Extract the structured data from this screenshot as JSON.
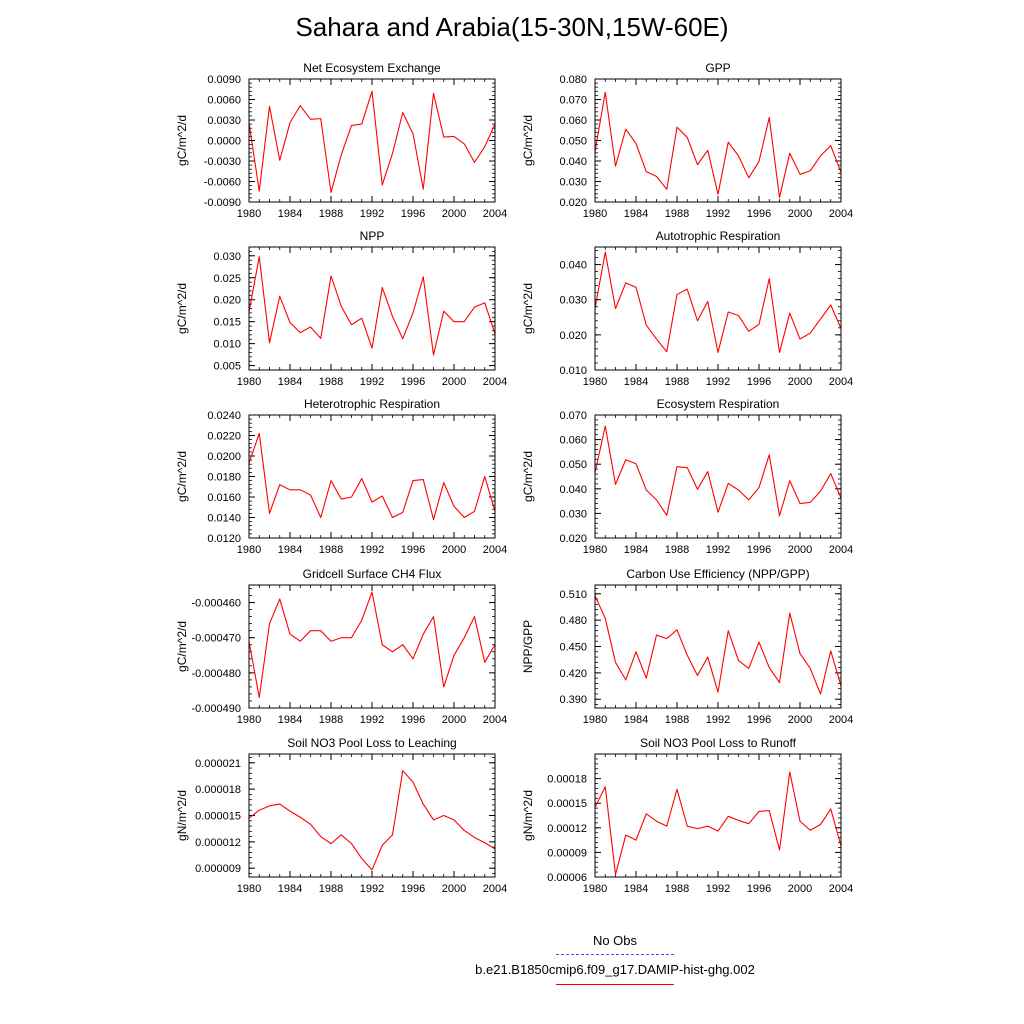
{
  "title": "Sahara and Arabia(15-30N,15W-60E)",
  "legend": {
    "items": [
      {
        "label": "No Obs",
        "color": "#4b4bff",
        "dash": true
      },
      {
        "label": "b.e21.B1850cmip6.f09_g17.DAMIP-hist-ghg.002",
        "color": "#ff0000",
        "dash": false
      }
    ]
  },
  "chart_data": [
    {
      "type": "line",
      "title": "Net Ecosystem Exchange",
      "ylabel": "gC/m^2/d",
      "x": [
        1980,
        1981,
        1982,
        1983,
        1984,
        1985,
        1986,
        1987,
        1988,
        1989,
        1990,
        1991,
        1992,
        1993,
        1994,
        1995,
        1996,
        1997,
        1998,
        1999,
        2000,
        2001,
        2002,
        2003,
        2004
      ],
      "xticks": [
        "1980",
        "1984",
        "1988",
        "1992",
        "1996",
        "2000",
        "2004"
      ],
      "xlim": [
        1980,
        2004
      ],
      "ylim": [
        -0.009,
        0.009
      ],
      "yticks": [
        "-0.0090",
        "-0.0060",
        "-0.0030",
        "0.0000",
        "0.0030",
        "0.0060",
        "0.0090"
      ],
      "series": [
        {
          "color": "#ff0000",
          "values": [
            0.0026,
            -0.0074,
            0.005,
            -0.0029,
            0.0026,
            0.0051,
            0.0031,
            0.0032,
            -0.0076,
            -0.0021,
            0.0022,
            0.0024,
            0.0072,
            -0.0065,
            -0.0019,
            0.0041,
            0.001,
            -0.0071,
            0.0069,
            0.0005,
            0.0006,
            -0.0005,
            -0.0032,
            -0.0009,
            0.0024
          ]
        }
      ]
    },
    {
      "type": "line",
      "title": "GPP",
      "ylabel": "gC/m^2/d",
      "x": [
        1980,
        1981,
        1982,
        1983,
        1984,
        1985,
        1986,
        1987,
        1988,
        1989,
        1990,
        1991,
        1992,
        1993,
        1994,
        1995,
        1996,
        1997,
        1998,
        1999,
        2000,
        2001,
        2002,
        2003,
        2004
      ],
      "xticks": [
        "1980",
        "1984",
        "1988",
        "1992",
        "1996",
        "2000",
        "2004"
      ],
      "xlim": [
        1980,
        2004
      ],
      "ylim": [
        0.02,
        0.08
      ],
      "yticks": [
        "0.020",
        "0.030",
        "0.040",
        "0.050",
        "0.060",
        "0.070",
        "0.080"
      ],
      "series": [
        {
          "color": "#ff0000",
          "values": [
            0.0445,
            0.0735,
            0.0375,
            0.0555,
            0.0485,
            0.0348,
            0.0325,
            0.0262,
            0.0565,
            0.0515,
            0.0382,
            0.0452,
            0.0238,
            0.0492,
            0.0425,
            0.0318,
            0.0398,
            0.0612,
            0.0222,
            0.0438,
            0.0335,
            0.0352,
            0.0425,
            0.0475,
            0.0345
          ]
        }
      ]
    },
    {
      "type": "line",
      "title": "NPP",
      "ylabel": "gC/m^2/d",
      "x": [
        1980,
        1981,
        1982,
        1983,
        1984,
        1985,
        1986,
        1987,
        1988,
        1989,
        1990,
        1991,
        1992,
        1993,
        1994,
        1995,
        1996,
        1997,
        1998,
        1999,
        2000,
        2001,
        2002,
        2003,
        2004
      ],
      "xticks": [
        "1980",
        "1984",
        "1988",
        "1992",
        "1996",
        "2000",
        "2004"
      ],
      "xlim": [
        1980,
        2004
      ],
      "ylim": [
        0.004,
        0.032
      ],
      "yticks": [
        "0.005",
        "0.010",
        "0.015",
        "0.020",
        "0.025",
        "0.030"
      ],
      "series": [
        {
          "color": "#ff0000",
          "values": [
            0.0172,
            0.0298,
            0.0102,
            0.0208,
            0.0148,
            0.0125,
            0.0138,
            0.0112,
            0.0254,
            0.0185,
            0.0143,
            0.0158,
            0.009,
            0.0228,
            0.0162,
            0.0111,
            0.017,
            0.0252,
            0.0074,
            0.0174,
            0.015,
            0.015,
            0.0183,
            0.0193,
            0.0122
          ]
        }
      ]
    },
    {
      "type": "line",
      "title": "Autotrophic Respiration",
      "ylabel": "gC/m^2/d",
      "x": [
        1980,
        1981,
        1982,
        1983,
        1984,
        1985,
        1986,
        1987,
        1988,
        1989,
        1990,
        1991,
        1992,
        1993,
        1994,
        1995,
        1996,
        1997,
        1998,
        1999,
        2000,
        2001,
        2002,
        2003,
        2004
      ],
      "xticks": [
        "1980",
        "1984",
        "1988",
        "1992",
        "1996",
        "2000",
        "2004"
      ],
      "xlim": [
        1980,
        2004
      ],
      "ylim": [
        0.01,
        0.045
      ],
      "yticks": [
        "0.010",
        "0.020",
        "0.030",
        "0.040"
      ],
      "series": [
        {
          "color": "#ff0000",
          "values": [
            0.0275,
            0.0435,
            0.0275,
            0.0348,
            0.0335,
            0.0228,
            0.0188,
            0.0152,
            0.0315,
            0.033,
            0.024,
            0.0295,
            0.015,
            0.0265,
            0.0255,
            0.021,
            0.023,
            0.036,
            0.015,
            0.0262,
            0.0188,
            0.0205,
            0.0245,
            0.0285,
            0.0218
          ]
        }
      ]
    },
    {
      "type": "line",
      "title": "Heterotrophic Respiration",
      "ylabel": "gC/m^2/d",
      "x": [
        1980,
        1981,
        1982,
        1983,
        1984,
        1985,
        1986,
        1987,
        1988,
        1989,
        1990,
        1991,
        1992,
        1993,
        1994,
        1995,
        1996,
        1997,
        1998,
        1999,
        2000,
        2001,
        2002,
        2003,
        2004
      ],
      "xticks": [
        "1980",
        "1984",
        "1988",
        "1992",
        "1996",
        "2000",
        "2004"
      ],
      "xlim": [
        1980,
        2004
      ],
      "ylim": [
        0.012,
        0.024
      ],
      "yticks": [
        "0.0120",
        "0.0140",
        "0.0160",
        "0.0180",
        "0.0200",
        "0.0220",
        "0.0240"
      ],
      "series": [
        {
          "color": "#ff0000",
          "values": [
            0.0193,
            0.0222,
            0.0144,
            0.0172,
            0.0167,
            0.0167,
            0.0162,
            0.014,
            0.0176,
            0.0158,
            0.016,
            0.0178,
            0.0155,
            0.0161,
            0.014,
            0.0145,
            0.0176,
            0.0177,
            0.0138,
            0.0174,
            0.0151,
            0.014,
            0.0146,
            0.018,
            0.0146
          ]
        }
      ]
    },
    {
      "type": "line",
      "title": "Ecosystem Respiration",
      "ylabel": "gC/m^2/d",
      "x": [
        1980,
        1981,
        1982,
        1983,
        1984,
        1985,
        1986,
        1987,
        1988,
        1989,
        1990,
        1991,
        1992,
        1993,
        1994,
        1995,
        1996,
        1997,
        1998,
        1999,
        2000,
        2001,
        2002,
        2003,
        2004
      ],
      "xticks": [
        "1980",
        "1984",
        "1988",
        "1992",
        "1996",
        "2000",
        "2004"
      ],
      "xlim": [
        1980,
        2004
      ],
      "ylim": [
        0.02,
        0.07
      ],
      "yticks": [
        "0.020",
        "0.030",
        "0.040",
        "0.050",
        "0.060",
        "0.070"
      ],
      "series": [
        {
          "color": "#ff0000",
          "values": [
            0.0465,
            0.0655,
            0.0418,
            0.0518,
            0.0502,
            0.0395,
            0.0355,
            0.0292,
            0.049,
            0.0486,
            0.0398,
            0.047,
            0.0305,
            0.0422,
            0.0395,
            0.0355,
            0.0405,
            0.0538,
            0.029,
            0.0433,
            0.034,
            0.0345,
            0.039,
            0.0462,
            0.0362
          ]
        }
      ]
    },
    {
      "type": "line",
      "title": "Gridcell Surface CH4 Flux",
      "ylabel": "gC/m^2/d",
      "x": [
        1980,
        1981,
        1982,
        1983,
        1984,
        1985,
        1986,
        1987,
        1988,
        1989,
        1990,
        1991,
        1992,
        1993,
        1994,
        1995,
        1996,
        1997,
        1998,
        1999,
        2000,
        2001,
        2002,
        2003,
        2004
      ],
      "xticks": [
        "1980",
        "1984",
        "1988",
        "1992",
        "1996",
        "2000",
        "2004"
      ],
      "xlim": [
        1980,
        2004
      ],
      "ylim": [
        -0.00049,
        -0.000455
      ],
      "yticks": [
        "-0.000490",
        "-0.000480",
        "-0.000470",
        "-0.000460"
      ],
      "series": [
        {
          "color": "#ff0000",
          "values": [
            -0.000471,
            -0.000487,
            -0.000466,
            -0.000459,
            -0.000469,
            -0.000471,
            -0.000468,
            -0.000468,
            -0.000471,
            -0.00047,
            -0.00047,
            -0.000465,
            -0.000457,
            -0.000472,
            -0.000474,
            -0.000472,
            -0.000476,
            -0.000469,
            -0.000464,
            -0.000484,
            -0.000475,
            -0.00047,
            -0.000464,
            -0.000477,
            -0.000472
          ]
        }
      ]
    },
    {
      "type": "line",
      "title": "Carbon Use Efficiency (NPP/GPP)",
      "ylabel": "NPP/GPP",
      "x": [
        1980,
        1981,
        1982,
        1983,
        1984,
        1985,
        1986,
        1987,
        1988,
        1989,
        1990,
        1991,
        1992,
        1993,
        1994,
        1995,
        1996,
        1997,
        1998,
        1999,
        2000,
        2001,
        2002,
        2003,
        2004
      ],
      "xticks": [
        "1980",
        "1984",
        "1988",
        "1992",
        "1996",
        "2000",
        "2004"
      ],
      "xlim": [
        1980,
        2004
      ],
      "ylim": [
        0.38,
        0.52
      ],
      "yticks": [
        "0.390",
        "0.420",
        "0.450",
        "0.480",
        "0.510"
      ],
      "series": [
        {
          "color": "#ff0000",
          "values": [
            0.508,
            0.482,
            0.432,
            0.412,
            0.444,
            0.414,
            0.463,
            0.459,
            0.469,
            0.44,
            0.417,
            0.438,
            0.398,
            0.468,
            0.434,
            0.425,
            0.455,
            0.426,
            0.409,
            0.488,
            0.442,
            0.425,
            0.396,
            0.445,
            0.405
          ]
        }
      ]
    },
    {
      "type": "line",
      "title": "Soil NO3 Pool Loss to Leaching",
      "ylabel": "gN/m^2/d",
      "x": [
        1980,
        1981,
        1982,
        1983,
        1984,
        1985,
        1986,
        1987,
        1988,
        1989,
        1990,
        1991,
        1992,
        1993,
        1994,
        1995,
        1996,
        1997,
        1998,
        1999,
        2000,
        2001,
        2002,
        2003,
        2004
      ],
      "xticks": [
        "1980",
        "1984",
        "1988",
        "1992",
        "1996",
        "2000",
        "2004"
      ],
      "xlim": [
        1980,
        2004
      ],
      "ylim": [
        8e-06,
        2.2e-05
      ],
      "yticks": [
        "0.000009",
        "0.000012",
        "0.000015",
        "0.000018",
        "0.000021"
      ],
      "series": [
        {
          "color": "#ff0000",
          "values": [
            1.47e-05,
            1.56e-05,
            1.61e-05,
            1.63e-05,
            1.55e-05,
            1.48e-05,
            1.4e-05,
            1.26e-05,
            1.18e-05,
            1.28e-05,
            1.18e-05,
            1.01e-05,
            8.8e-06,
            1.16e-05,
            1.28e-05,
            2.01e-05,
            1.88e-05,
            1.63e-05,
            1.45e-05,
            1.5e-05,
            1.45e-05,
            1.33e-05,
            1.25e-05,
            1.19e-05,
            1.12e-05
          ]
        }
      ]
    },
    {
      "type": "line",
      "title": "Soil NO3 Pool Loss to Runoff",
      "ylabel": "gN/m^2/d",
      "x": [
        1980,
        1981,
        1982,
        1983,
        1984,
        1985,
        1986,
        1987,
        1988,
        1989,
        1990,
        1991,
        1992,
        1993,
        1994,
        1995,
        1996,
        1997,
        1998,
        1999,
        2000,
        2001,
        2002,
        2003,
        2004
      ],
      "xticks": [
        "1980",
        "1984",
        "1988",
        "1992",
        "1996",
        "2000",
        "2004"
      ],
      "xlim": [
        1980,
        2004
      ],
      "ylim": [
        6e-05,
        0.00021
      ],
      "yticks": [
        "0.00006",
        "0.00009",
        "0.00012",
        "0.00015",
        "0.00018"
      ],
      "series": [
        {
          "color": "#ff0000",
          "values": [
            0.000145,
            0.00017,
            6.3e-05,
            0.000111,
            0.000105,
            0.000137,
            0.000128,
            0.000122,
            0.000167,
            0.000122,
            0.000119,
            0.000122,
            0.000116,
            0.000134,
            0.000129,
            0.000125,
            0.00014,
            0.000141,
            9.3e-05,
            0.000188,
            0.000128,
            0.000117,
            0.000124,
            0.000143,
            9.8e-05
          ]
        }
      ]
    }
  ]
}
